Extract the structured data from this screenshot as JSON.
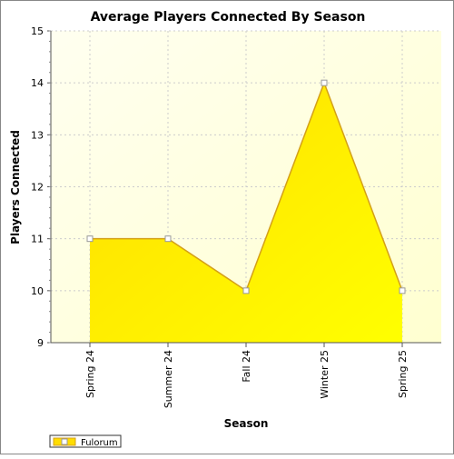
{
  "chart_data": {
    "type": "area",
    "title": "Average Players Connected By Season",
    "xlabel": "Season",
    "ylabel": "Players Connected",
    "categories": [
      "Spring 24",
      "Summer 24",
      "Fall 24",
      "Winter 25",
      "Spring 25"
    ],
    "series": [
      {
        "name": "Fulorum",
        "values": [
          11,
          11,
          10,
          14,
          10
        ]
      }
    ],
    "ylim": [
      9,
      15
    ],
    "yticks": [
      9,
      10,
      11,
      12,
      13,
      14,
      15
    ],
    "grid": true,
    "legend": "bottom-left",
    "colors": {
      "area_fill_start": "#ffdd00",
      "area_fill_end": "#ffff00",
      "line": "#d4a017",
      "plot_bg_start": "#fffff0",
      "plot_bg_end": "#ffffd0",
      "grid": "#cccccc"
    }
  }
}
